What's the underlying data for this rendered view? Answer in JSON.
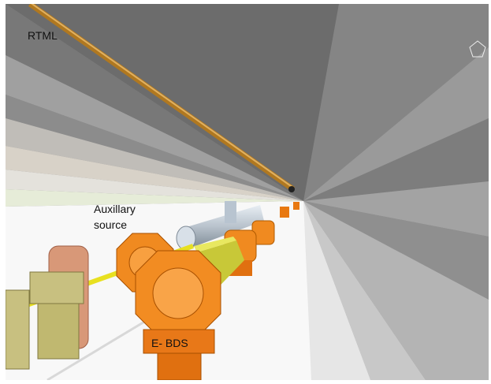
{
  "labels": {
    "rtml": "RTML",
    "auxiliary": [
      "Auxillary",
      "source"
    ],
    "bds": "E- BDS"
  }
}
